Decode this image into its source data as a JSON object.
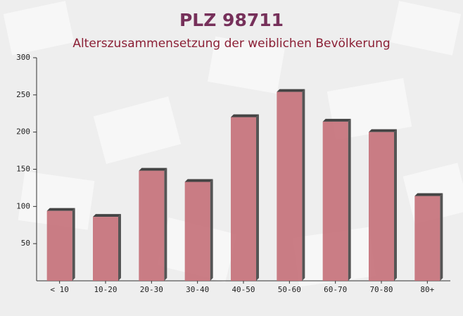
{
  "chart_data": {
    "type": "bar",
    "title": "PLZ 98711",
    "subtitle": "Alterszusammensetzung der weiblichen Bevölkerung",
    "categories": [
      "< 10",
      "10-20",
      "20-30",
      "30-40",
      "40-50",
      "50-60",
      "60-70",
      "70-80",
      "80+"
    ],
    "values": [
      94,
      86,
      148,
      133,
      220,
      254,
      214,
      200,
      114
    ],
    "color": "#c46f78",
    "ylim": [
      0,
      300
    ],
    "yticks": [
      50,
      100,
      150,
      200,
      250,
      300
    ]
  }
}
